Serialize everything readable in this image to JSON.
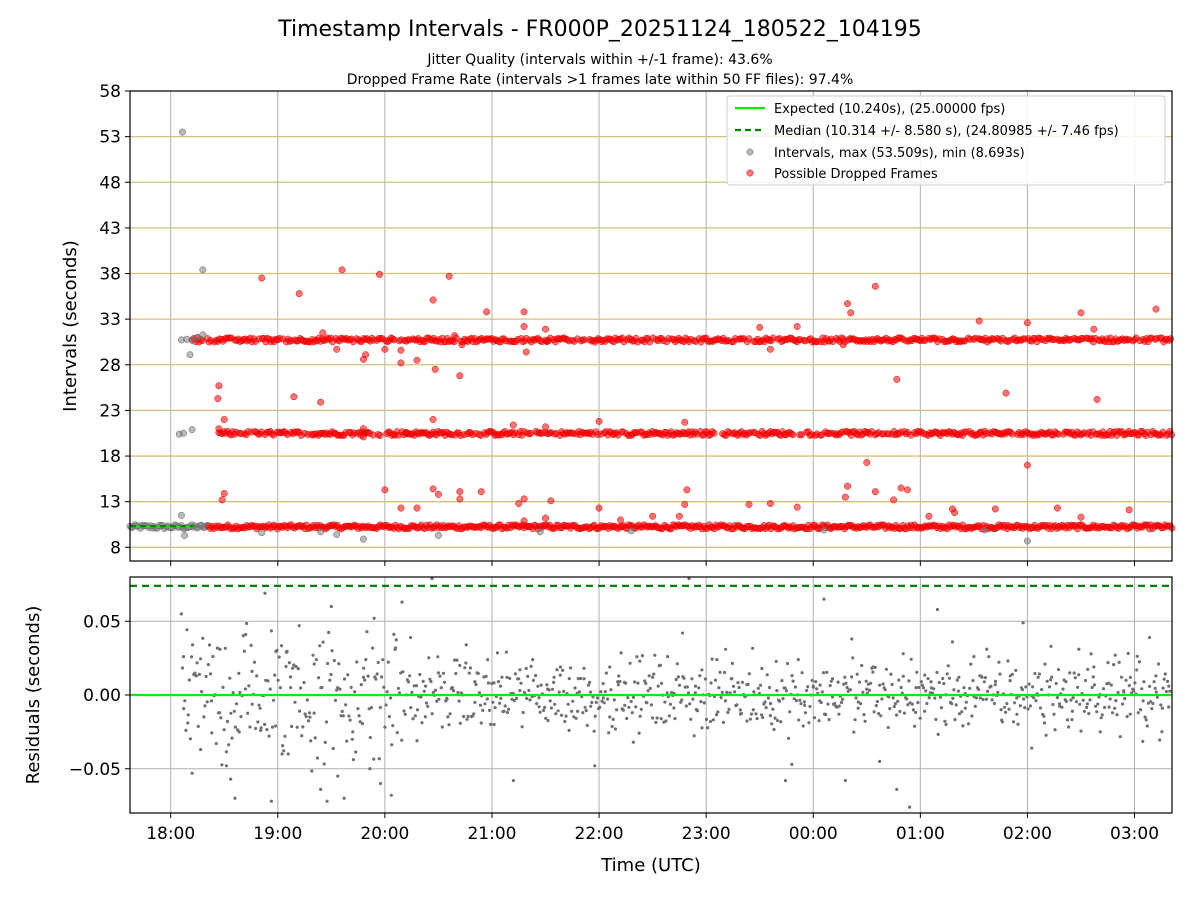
{
  "chart_data": [
    {
      "type": "scatter",
      "title": "Timestamp Intervals - FR000P_20251124_180522_104195",
      "subtitle_lines": [
        "Jitter Quality (intervals within +/-1 frame): 43.6%",
        "Dropped Frame Rate (intervals >1 frames late within 50 FF files): 97.4%"
      ],
      "ylabel": "Intervals (seconds)",
      "ylim": [
        6.5,
        58
      ],
      "yticks": [
        8,
        13,
        18,
        23,
        28,
        33,
        38,
        43,
        48,
        53,
        58
      ],
      "ytick_labels": [
        "8",
        "13",
        "18",
        "23",
        "28",
        "33",
        "38",
        "43",
        "48",
        "53",
        "58"
      ],
      "x_range_hours": [
        17.62,
        27.35
      ],
      "expected": 10.24,
      "median": 10.314,
      "legend": [
        "Expected (10.240s), (25.00000 fps)",
        "Median (10.314 +/- 8.580 s), (24.80985 +/- 7.46 fps)",
        "Intervals, max (53.509s), min (8.693s)",
        "Possible Dropped Frames"
      ],
      "bands": [
        {
          "level": 10.24,
          "start": 17.62,
          "end": 27.35,
          "role": "nominal intervals"
        },
        {
          "level": 20.48,
          "start": 18.45,
          "end": 27.35,
          "role": "dropped frames (2x)"
        },
        {
          "level": 30.72,
          "start": 18.2,
          "end": 27.35,
          "role": "dropped frames (3x)"
        }
      ],
      "gray_points": [
        [
          18.11,
          53.5
        ],
        [
          18.3,
          38.4
        ],
        [
          18.1,
          30.72
        ],
        [
          18.15,
          30.8
        ],
        [
          18.2,
          30.7
        ],
        [
          18.25,
          31.0
        ],
        [
          18.3,
          31.3
        ],
        [
          18.18,
          29.1
        ],
        [
          18.08,
          20.4
        ],
        [
          18.12,
          20.5
        ],
        [
          18.2,
          20.9
        ],
        [
          18.1,
          11.5
        ],
        [
          18.13,
          9.3
        ],
        [
          18.85,
          9.6
        ],
        [
          19.4,
          9.7
        ],
        [
          19.55,
          9.4
        ],
        [
          19.8,
          8.9
        ],
        [
          20.5,
          9.3
        ],
        [
          21.45,
          9.7
        ],
        [
          22.3,
          9.8
        ],
        [
          24.1,
          9.9
        ],
        [
          25.6,
          9.9
        ],
        [
          26.0,
          8.693
        ]
      ],
      "red_points": [
        [
          18.45,
          25.7
        ],
        [
          18.44,
          24.3
        ],
        [
          18.5,
          22.0
        ],
        [
          18.45,
          21.0
        ],
        [
          18.5,
          13.9
        ],
        [
          18.48,
          13.2
        ],
        [
          18.85,
          37.5
        ],
        [
          19.15,
          24.5
        ],
        [
          19.2,
          35.8
        ],
        [
          19.4,
          23.9
        ],
        [
          19.42,
          31.5
        ],
        [
          19.6,
          38.4
        ],
        [
          19.55,
          29.7
        ],
        [
          19.8,
          28.6
        ],
        [
          19.82,
          29.1
        ],
        [
          19.8,
          21.0
        ],
        [
          19.8,
          20.1
        ],
        [
          19.95,
          37.9
        ],
        [
          20.0,
          29.7
        ],
        [
          20.0,
          14.3
        ],
        [
          20.15,
          28.2
        ],
        [
          20.15,
          29.6
        ],
        [
          20.3,
          28.5
        ],
        [
          20.15,
          12.3
        ],
        [
          20.3,
          12.3
        ],
        [
          20.2,
          20.6
        ],
        [
          20.45,
          35.1
        ],
        [
          20.47,
          27.5
        ],
        [
          20.45,
          22.0
        ],
        [
          20.45,
          14.4
        ],
        [
          20.5,
          13.8
        ],
        [
          20.6,
          37.7
        ],
        [
          20.65,
          31.2
        ],
        [
          20.7,
          26.8
        ],
        [
          20.72,
          30.2
        ],
        [
          20.7,
          14.1
        ],
        [
          20.7,
          13.3
        ],
        [
          20.9,
          14.1
        ],
        [
          20.95,
          33.8
        ],
        [
          21.2,
          21.4
        ],
        [
          21.3,
          33.8
        ],
        [
          21.3,
          32.2
        ],
        [
          21.32,
          29.4
        ],
        [
          21.25,
          12.8
        ],
        [
          21.3,
          13.3
        ],
        [
          21.3,
          10.9
        ],
        [
          21.5,
          21.2
        ],
        [
          21.5,
          31.9
        ],
        [
          21.52,
          30.6
        ],
        [
          21.55,
          13.1
        ],
        [
          21.5,
          11.2
        ],
        [
          22.0,
          21.8
        ],
        [
          22.0,
          12.3
        ],
        [
          22.2,
          11.0
        ],
        [
          22.5,
          11.4
        ],
        [
          22.75,
          11.4
        ],
        [
          22.8,
          21.7
        ],
        [
          22.8,
          12.7
        ],
        [
          22.82,
          14.3
        ],
        [
          23.4,
          12.7
        ],
        [
          23.5,
          32.1
        ],
        [
          23.6,
          29.7
        ],
        [
          23.6,
          12.8
        ],
        [
          23.85,
          32.2
        ],
        [
          23.85,
          12.4
        ],
        [
          24.28,
          30.2
        ],
        [
          24.3,
          13.5
        ],
        [
          24.32,
          14.7
        ],
        [
          24.32,
          34.7
        ],
        [
          24.35,
          33.7
        ],
        [
          24.5,
          17.3
        ],
        [
          24.58,
          36.6
        ],
        [
          24.58,
          14.1
        ],
        [
          24.75,
          13.2
        ],
        [
          24.78,
          26.4
        ],
        [
          24.82,
          14.5
        ],
        [
          24.88,
          14.3
        ],
        [
          25.08,
          11.4
        ],
        [
          25.3,
          12.2
        ],
        [
          25.32,
          11.8
        ],
        [
          25.55,
          32.8
        ],
        [
          25.7,
          12.2
        ],
        [
          25.8,
          24.9
        ],
        [
          26.0,
          32.6
        ],
        [
          26.0,
          17.0
        ],
        [
          26.28,
          12.3
        ],
        [
          26.5,
          33.7
        ],
        [
          26.5,
          11.3
        ],
        [
          26.62,
          31.9
        ],
        [
          26.65,
          24.2
        ],
        [
          26.95,
          12.1
        ],
        [
          27.2,
          34.1
        ]
      ]
    },
    {
      "type": "scatter",
      "ylabel": "Residuals (seconds)",
      "xlabel": "Time (UTC)",
      "ylim": [
        -0.08,
        0.08
      ],
      "yticks": [
        -0.05,
        0.0,
        0.05
      ],
      "ytick_labels": [
        "−0.05",
        "0.00",
        "0.05"
      ],
      "xlim_hours": [
        17.62,
        27.35
      ],
      "xticks_hours": [
        18,
        19,
        20,
        21,
        22,
        23,
        24,
        25,
        26,
        27
      ],
      "xtick_labels": [
        "18:00",
        "19:00",
        "20:00",
        "21:00",
        "22:00",
        "23:00",
        "00:00",
        "01:00",
        "02:00",
        "03:00"
      ],
      "expected_residual": 0.0,
      "median_residual": 0.074,
      "residual_points": [
        [
          18.12,
          0.026
        ],
        [
          18.16,
          -0.019
        ],
        [
          18.2,
          -0.053
        ],
        [
          18.24,
          0.013
        ],
        [
          18.28,
          -0.037
        ],
        [
          18.38,
          -0.004
        ],
        [
          18.46,
          0.031
        ],
        [
          18.52,
          -0.048
        ],
        [
          18.56,
          -0.057
        ],
        [
          18.6,
          -0.07
        ],
        [
          18.64,
          -0.025
        ],
        [
          18.7,
          0.041
        ],
        [
          18.76,
          0.016
        ],
        [
          18.84,
          -0.024
        ],
        [
          18.88,
          0.069
        ],
        [
          18.94,
          -0.072
        ],
        [
          18.98,
          -0.021
        ],
        [
          19.04,
          -0.04
        ],
        [
          19.08,
          0.029
        ],
        [
          19.12,
          0.005
        ],
        [
          19.2,
          0.047
        ],
        [
          19.3,
          -0.015
        ],
        [
          19.34,
          0.021
        ],
        [
          19.4,
          -0.064
        ],
        [
          19.46,
          -0.072
        ],
        [
          19.5,
          0.06
        ],
        [
          19.56,
          -0.055
        ],
        [
          19.62,
          -0.07
        ],
        [
          19.7,
          -0.025
        ],
        [
          19.8,
          0.012
        ],
        [
          19.86,
          -0.05
        ],
        [
          19.9,
          0.052
        ],
        [
          19.96,
          -0.06
        ],
        [
          20.06,
          -0.068
        ],
        [
          20.1,
          0.032
        ],
        [
          20.16,
          0.063
        ],
        [
          20.24,
          0.039
        ],
        [
          20.3,
          -0.031
        ],
        [
          20.38,
          0.006
        ],
        [
          20.44,
          0.079
        ],
        [
          20.5,
          0.015
        ],
        [
          20.58,
          -0.003
        ],
        [
          20.64,
          0.003
        ],
        [
          20.7,
          0.02
        ],
        [
          20.76,
          0.034
        ],
        [
          20.84,
          0.009
        ],
        [
          20.9,
          -0.019
        ],
        [
          20.96,
          0.024
        ],
        [
          21.02,
          -0.02
        ],
        [
          21.08,
          0.006
        ],
        [
          21.14,
          0.012
        ],
        [
          21.2,
          -0.058
        ],
        [
          21.26,
          0.003
        ],
        [
          21.32,
          0.018
        ],
        [
          21.38,
          0.024
        ],
        [
          21.44,
          -0.008
        ],
        [
          21.52,
          0.004
        ],
        [
          21.58,
          0.012
        ],
        [
          21.64,
          0.019
        ],
        [
          21.72,
          -0.024
        ],
        [
          21.8,
          -0.011
        ],
        [
          21.86,
          0.011
        ],
        [
          21.92,
          0.002
        ],
        [
          21.96,
          -0.048
        ],
        [
          22.04,
          -0.002
        ],
        [
          22.1,
          0.019
        ],
        [
          22.18,
          0.007
        ],
        [
          22.24,
          -0.007
        ],
        [
          22.32,
          -0.032
        ],
        [
          22.38,
          0.023
        ],
        [
          22.44,
          -0.005
        ],
        [
          22.5,
          0.012
        ],
        [
          22.58,
          -0.016
        ],
        [
          22.64,
          0.026
        ],
        [
          22.7,
          0.001
        ],
        [
          22.78,
          0.042
        ],
        [
          22.84,
          0.079
        ],
        [
          22.9,
          0.006
        ],
        [
          22.96,
          0.017
        ],
        [
          23.04,
          -0.018
        ],
        [
          23.1,
          0.024
        ],
        [
          23.18,
          -0.004
        ],
        [
          23.24,
          0.011
        ],
        [
          23.32,
          -0.013
        ],
        [
          23.38,
          0.007
        ],
        [
          23.44,
          -0.01
        ],
        [
          23.52,
          0.018
        ],
        [
          23.6,
          -0.014
        ],
        [
          23.66,
          0.003
        ],
        [
          23.74,
          -0.058
        ],
        [
          23.8,
          -0.047
        ],
        [
          23.86,
          0.024
        ],
        [
          23.92,
          -0.007
        ],
        [
          24.0,
          0.006
        ],
        [
          24.06,
          -0.004
        ],
        [
          24.1,
          0.065
        ],
        [
          24.18,
          0.011
        ],
        [
          24.24,
          -0.013
        ],
        [
          24.3,
          -0.058
        ],
        [
          24.36,
          0.038
        ],
        [
          24.42,
          -0.009
        ],
        [
          24.5,
          0.004
        ],
        [
          24.56,
          0.019
        ],
        [
          24.62,
          -0.045
        ],
        [
          24.7,
          -0.022
        ],
        [
          24.78,
          -0.064
        ],
        [
          24.84,
          0.028
        ],
        [
          24.9,
          -0.076
        ],
        [
          24.96,
          0.005
        ],
        [
          25.04,
          -0.011
        ],
        [
          25.1,
          0.009
        ],
        [
          25.16,
          0.058
        ],
        [
          25.24,
          -0.02
        ],
        [
          25.3,
          0.036
        ],
        [
          25.36,
          0.012
        ],
        [
          25.42,
          -0.009
        ],
        [
          25.5,
          0.026
        ],
        [
          25.56,
          -0.002
        ],
        [
          25.62,
          0.031
        ],
        [
          25.7,
          0.007
        ],
        [
          25.76,
          -0.017
        ],
        [
          25.84,
          0.013
        ],
        [
          25.9,
          -0.002
        ],
        [
          25.96,
          0.049
        ],
        [
          26.04,
          -0.036
        ],
        [
          26.1,
          0.012
        ],
        [
          26.16,
          -0.019
        ],
        [
          26.22,
          0.033
        ],
        [
          26.3,
          -0.006
        ],
        [
          26.36,
          0.009
        ],
        [
          26.42,
          -0.011
        ],
        [
          26.48,
          0.031
        ],
        [
          26.56,
          -0.006
        ],
        [
          26.62,
          0.019
        ],
        [
          26.68,
          -0.025
        ],
        [
          26.76,
          0.008
        ],
        [
          26.82,
          0.027
        ],
        [
          26.9,
          0.002
        ],
        [
          26.96,
          -0.013
        ],
        [
          27.02,
          0.017
        ],
        [
          27.08,
          -0.004
        ],
        [
          27.14,
          0.039
        ],
        [
          27.2,
          0.013
        ],
        [
          27.26,
          -0.009
        ],
        [
          27.32,
          0.006
        ]
      ]
    }
  ]
}
